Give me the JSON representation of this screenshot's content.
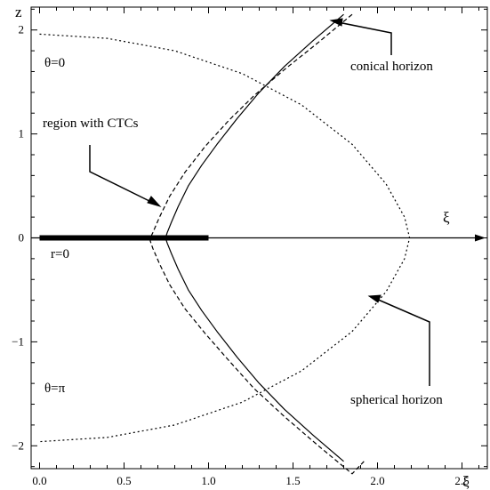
{
  "chart_data": {
    "type": "line",
    "xlabel": "ξ",
    "ylabel": "z",
    "axis_arrow_label": "ξ",
    "xlim": [
      -0.05,
      2.65
    ],
    "ylim": [
      -2.22,
      2.22
    ],
    "x_ticks": [
      {
        "value": 0.0,
        "label": "0.0"
      },
      {
        "value": 0.5,
        "label": "0.5"
      },
      {
        "value": 1.0,
        "label": "1.0"
      },
      {
        "value": 1.5,
        "label": "1.5"
      },
      {
        "value": 2.0,
        "label": "2.0"
      },
      {
        "value": 2.5,
        "label": "2.5"
      }
    ],
    "y_ticks": [
      {
        "value": 2,
        "label": "2"
      },
      {
        "value": 1,
        "label": "1"
      },
      {
        "value": 0,
        "label": "0"
      },
      {
        "value": -1,
        "label": "−1"
      },
      {
        "value": -2,
        "label": "−2"
      }
    ],
    "grid": false,
    "series": [
      {
        "style": "solid",
        "color": "#000000",
        "description_hidden": true,
        "x": [
          1.8,
          1.62,
          1.45,
          1.3,
          1.17,
          1.05,
          0.96,
          0.88,
          0.82,
          0.78,
          0.755,
          0.745,
          0.755,
          0.78,
          0.82,
          0.88,
          0.96,
          1.05,
          1.17,
          1.3,
          1.45,
          1.62,
          1.8
        ],
        "z": [
          2.15,
          1.9,
          1.65,
          1.4,
          1.15,
          0.9,
          0.7,
          0.5,
          0.3,
          0.15,
          0.05,
          0.0,
          -0.05,
          -0.15,
          -0.3,
          -0.5,
          -0.7,
          -0.9,
          -1.15,
          -1.4,
          -1.65,
          -1.9,
          -2.15
        ]
      },
      {
        "style": "dashed",
        "color": "#000000",
        "x": [
          1.85,
          1.65,
          1.45,
          1.27,
          1.12,
          0.98,
          0.86,
          0.77,
          0.71,
          0.67,
          0.655,
          0.655,
          0.67,
          0.71,
          0.77,
          0.86,
          0.98,
          1.12,
          1.27,
          1.45,
          1.65,
          1.85,
          1.92
        ],
        "z": [
          2.15,
          1.88,
          1.62,
          1.37,
          1.13,
          0.88,
          0.63,
          0.4,
          0.2,
          0.05,
          0.0,
          -0.03,
          -0.1,
          -0.25,
          -0.45,
          -0.68,
          -0.92,
          -1.18,
          -1.45,
          -1.72,
          -2.0,
          -2.27,
          -2.15
        ]
      },
      {
        "style": "dotted",
        "color": "#000000",
        "x": [
          0.0,
          0.4,
          0.8,
          1.2,
          1.55,
          1.85,
          2.05,
          2.16,
          2.19,
          2.16,
          2.05,
          1.85,
          1.55,
          1.2,
          0.8,
          0.4,
          0.0
        ],
        "z": [
          1.96,
          1.92,
          1.8,
          1.58,
          1.28,
          0.9,
          0.52,
          0.2,
          0.0,
          -0.2,
          -0.52,
          -0.9,
          -1.28,
          -1.58,
          -1.8,
          -1.92,
          -1.96
        ]
      }
    ],
    "thick_segment": {
      "x": [
        0.0,
        1.0
      ],
      "z": 0
    },
    "annotations": [
      {
        "id": "theta0",
        "text": "θ=0"
      },
      {
        "id": "thetapi",
        "text": "θ=π"
      },
      {
        "id": "r0",
        "text": "r=0"
      },
      {
        "id": "ctc",
        "text": "region with CTCs"
      },
      {
        "id": "conical",
        "text": "conical horizon"
      },
      {
        "id": "spherical",
        "text": "spherical horizon"
      }
    ]
  }
}
